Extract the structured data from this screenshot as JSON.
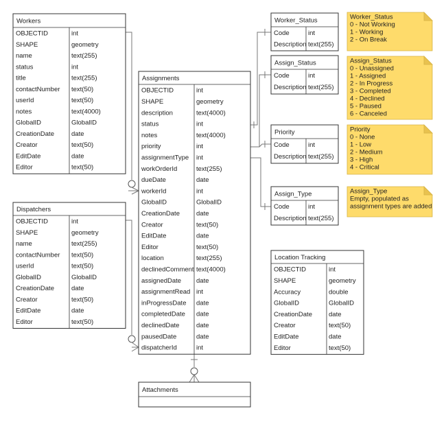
{
  "tables": [
    {
      "title": "Workers",
      "rows": [
        [
          "OBJECTID",
          "int"
        ],
        [
          "SHAPE",
          "geometry"
        ],
        [
          "name",
          "text(255)"
        ],
        [
          "status",
          "int"
        ],
        [
          "title",
          "text(255)"
        ],
        [
          "contactNumber",
          "text(50)"
        ],
        [
          "userId",
          "text(50)"
        ],
        [
          "notes",
          "text(4000)"
        ],
        [
          "GlobalID",
          "GlobalID"
        ],
        [
          "CreationDate",
          "date"
        ],
        [
          "Creator",
          "text(50)"
        ],
        [
          "EditDate",
          "date"
        ],
        [
          "Editor",
          "text(50)"
        ]
      ]
    },
    {
      "title": "Dispatchers",
      "rows": [
        [
          "OBJECTID",
          "int"
        ],
        [
          "SHAPE",
          "geometry"
        ],
        [
          "name",
          "text(255)"
        ],
        [
          "contactNumber",
          "text(50)"
        ],
        [
          "userId",
          "text(50)"
        ],
        [
          "GlobalID",
          "GlobalID"
        ],
        [
          "CreationDate",
          "date"
        ],
        [
          "Creator",
          "text(50)"
        ],
        [
          "EditDate",
          "date"
        ],
        [
          "Editor",
          "text(50)"
        ]
      ]
    },
    {
      "title": "Assignments",
      "rows": [
        [
          "OBJECTID",
          "int"
        ],
        [
          "SHAPE",
          "geometry"
        ],
        [
          "description",
          "text(4000)"
        ],
        [
          "status",
          "int"
        ],
        [
          "notes",
          "text(4000)"
        ],
        [
          "priority",
          "int"
        ],
        [
          "assignmentType",
          "int"
        ],
        [
          "workOrderId",
          "text(255)"
        ],
        [
          "dueDate",
          "date"
        ],
        [
          "workerId",
          "int"
        ],
        [
          "GlobalID",
          "GlobalID"
        ],
        [
          "CreationDate",
          "date"
        ],
        [
          "Creator",
          "text(50)"
        ],
        [
          "EditDate",
          "date"
        ],
        [
          "Editor",
          "text(50)"
        ],
        [
          "location",
          "text(255)"
        ],
        [
          "declinedComment",
          "text(4000)"
        ],
        [
          "assignedDate",
          "date"
        ],
        [
          "assignmentRead",
          "int"
        ],
        [
          "inProgressDate",
          "date"
        ],
        [
          "completedDate",
          "date"
        ],
        [
          "declinedDate",
          "date"
        ],
        [
          "pausedDate",
          "date"
        ],
        [
          "dispatcherId",
          "int"
        ]
      ]
    },
    {
      "title": "Attachments",
      "rows": []
    },
    {
      "title": "Worker_Status",
      "rows": [
        [
          "Code",
          "int"
        ],
        [
          "Description",
          "text(255)"
        ]
      ]
    },
    {
      "title": "Assign_Status",
      "rows": [
        [
          "Code",
          "int"
        ],
        [
          "Description",
          "text(255)"
        ]
      ]
    },
    {
      "title": "Priority",
      "rows": [
        [
          "Code",
          "int"
        ],
        [
          "Description",
          "text(255)"
        ]
      ]
    },
    {
      "title": "Assign_Type",
      "rows": [
        [
          "Code",
          "int"
        ],
        [
          "Description",
          "text(255)"
        ]
      ]
    },
    {
      "title": "Location Tracking",
      "rows": [
        [
          "OBJECTID",
          "int"
        ],
        [
          "SHAPE",
          "geometry"
        ],
        [
          "Accuracy",
          "double"
        ],
        [
          "GlobalID",
          "GlobalID"
        ],
        [
          "CreationDate",
          "date"
        ],
        [
          "Creator",
          "text(50)"
        ],
        [
          "EditDate",
          "date"
        ],
        [
          "Editor",
          "text(50)"
        ]
      ]
    }
  ],
  "notes": [
    {
      "lines": [
        "Worker_Status",
        "0 - Not Working",
        "1 - Working",
        "2 - On Break"
      ]
    },
    {
      "lines": [
        "Assign_Status",
        "0 - Unassigned",
        "1 - Assigned",
        "2 - In Progress",
        "3 - Completed",
        "4 - Declined",
        "5 - Paused",
        "6 - Canceled"
      ]
    },
    {
      "lines": [
        "Priority",
        "0 - None",
        "1 - Low",
        "2 - Medium",
        "3 - High",
        "4 - Critical"
      ]
    },
    {
      "lines": [
        "Assign_Type",
        "Empty, populated as",
        "assignment types are added"
      ]
    }
  ]
}
